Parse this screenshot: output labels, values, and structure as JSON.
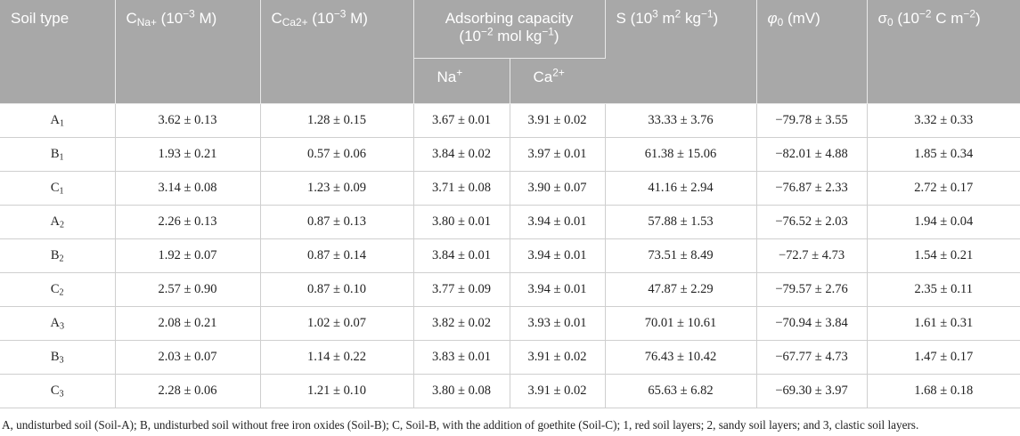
{
  "header": {
    "soil_type": "Soil type",
    "c_na": {
      "main": "C",
      "sub": "Na+",
      "unit_pre": " (10",
      "unit_exp": "−3",
      "unit_post": " M)"
    },
    "c_ca": {
      "main": "C",
      "sub": "Ca2+",
      "unit_pre": " (10",
      "unit_exp": "−3",
      "unit_post": " M)"
    },
    "adsorbing": {
      "line1": "Adsorbing capacity",
      "line2_pre": "(10",
      "line2_exp": "−2",
      "line2_post": " mol kg",
      "line2_exp2": "−1",
      "line2_end": ")"
    },
    "na_sub": {
      "main": "Na",
      "sup": "+"
    },
    "ca_sub": {
      "main": "Ca",
      "sup": "2+"
    },
    "s": {
      "pre": "S (10",
      "exp1": "3",
      "mid": " m",
      "exp2": "2",
      "mid2": " kg",
      "exp3": "−1",
      "end": ")"
    },
    "phi": {
      "main": "φ",
      "sub": "0",
      "unit": " (mV)"
    },
    "sigma": {
      "main": "σ",
      "sub": "0",
      "pre": " (10",
      "exp1": "−2",
      "mid": " C m",
      "exp2": "−2",
      "end": ")"
    }
  },
  "rows": [
    {
      "soil": "A",
      "soil_sub": "1",
      "c_na": "3.62 ± 0.13",
      "c_ca": "1.28 ± 0.15",
      "na": "3.67 ± 0.01",
      "ca": "3.91 ± 0.02",
      "s": "33.33 ± 3.76",
      "phi": "−79.78 ± 3.55",
      "sigma": "3.32 ± 0.33"
    },
    {
      "soil": "B",
      "soil_sub": "1",
      "c_na": "1.93 ± 0.21",
      "c_ca": "0.57 ± 0.06",
      "na": "3.84 ± 0.02",
      "ca": "3.97 ± 0.01",
      "s": "61.38 ± 15.06",
      "phi": "−82.01 ± 4.88",
      "sigma": "1.85 ± 0.34"
    },
    {
      "soil": "C",
      "soil_sub": "1",
      "c_na": "3.14 ± 0.08",
      "c_ca": "1.23 ± 0.09",
      "na": "3.71 ± 0.08",
      "ca": "3.90 ± 0.07",
      "s": "41.16 ± 2.94",
      "phi": "−76.87 ± 2.33",
      "sigma": "2.72 ± 0.17"
    },
    {
      "soil": "A",
      "soil_sub": "2",
      "c_na": "2.26 ± 0.13",
      "c_ca": "0.87 ± 0.13",
      "na": "3.80 ± 0.01",
      "ca": "3.94 ± 0.01",
      "s": "57.88 ± 1.53",
      "phi": "−76.52 ± 2.03",
      "sigma": "1.94 ± 0.04"
    },
    {
      "soil": "B",
      "soil_sub": "2",
      "c_na": "1.92 ± 0.07",
      "c_ca": "0.87 ± 0.14",
      "na": "3.84 ± 0.01",
      "ca": "3.94 ± 0.01",
      "s": "73.51 ± 8.49",
      "phi": "−72.7 ± 4.73",
      "sigma": "1.54 ± 0.21"
    },
    {
      "soil": "C",
      "soil_sub": "2",
      "c_na": "2.57 ± 0.90",
      "c_ca": "0.87 ± 0.10",
      "na": "3.77 ± 0.09",
      "ca": "3.94 ± 0.01",
      "s": "47.87 ± 2.29",
      "phi": "−79.57 ± 2.76",
      "sigma": "2.35 ± 0.11"
    },
    {
      "soil": "A",
      "soil_sub": "3",
      "c_na": "2.08 ± 0.21",
      "c_ca": "1.02 ± 0.07",
      "na": "3.82 ± 0.02",
      "ca": "3.93 ± 0.01",
      "s": "70.01 ± 10.61",
      "phi": "−70.94 ± 3.84",
      "sigma": "1.61 ± 0.31"
    },
    {
      "soil": "B",
      "soil_sub": "3",
      "c_na": "2.03 ± 0.07",
      "c_ca": "1.14 ± 0.22",
      "na": "3.83 ± 0.01",
      "ca": "3.91 ± 0.02",
      "s": "76.43 ± 10.42",
      "phi": "−67.77 ± 4.73",
      "sigma": "1.47 ± 0.17"
    },
    {
      "soil": "C",
      "soil_sub": "3",
      "c_na": "2.28 ± 0.06",
      "c_ca": "1.21 ± 0.10",
      "na": "3.80 ± 0.08",
      "ca": "3.91 ± 0.02",
      "s": "65.63 ± 6.82",
      "phi": "−69.30 ± 3.97",
      "sigma": "1.68 ± 0.18"
    }
  ],
  "footnote": "A, undisturbed soil (Soil-A); B, undisturbed soil without free iron oxides (Soil-B); C, Soil-B, with the addition of goethite (Soil-C); 1, red soil layers; 2, sandy soil layers; and 3, clastic soil layers.",
  "colors": {
    "header_bg": "#a8a8a8",
    "header_text": "#ffffff",
    "grid": "#cfcfcf"
  }
}
